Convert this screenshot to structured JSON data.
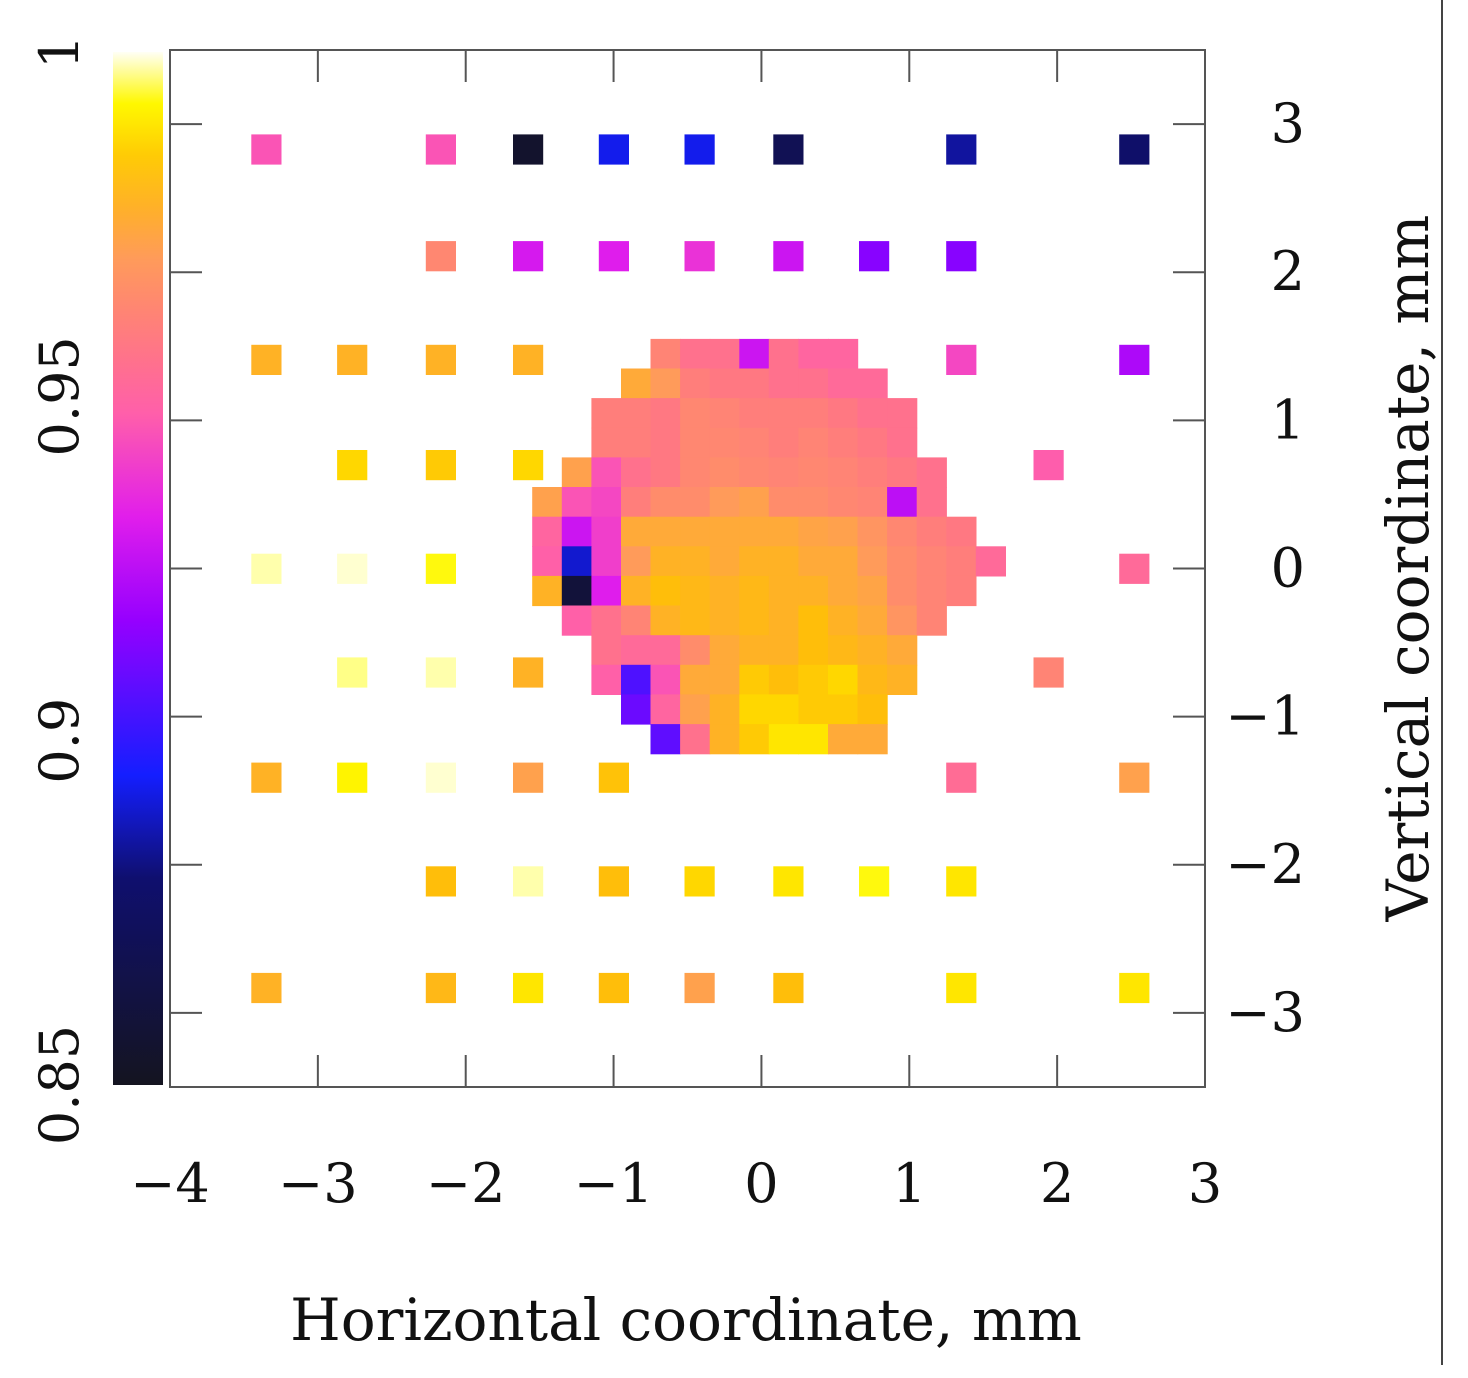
{
  "chart_data": {
    "type": "heatmap",
    "title": "",
    "xlabel": "Horizontal coordinate, mm",
    "ylabel": "Vertical coordinate, mm",
    "xlim": [
      -4,
      3
    ],
    "ylim": [
      -3.5,
      3.5
    ],
    "x_ticks": [
      -4,
      -3,
      -2,
      -1,
      0,
      1,
      2,
      3
    ],
    "x_tick_labels": [
      "−4",
      "−3",
      "−2",
      "−1",
      "0",
      "1",
      "2",
      "3"
    ],
    "y_ticks": [
      -3,
      -2,
      -1,
      0,
      1,
      2,
      3
    ],
    "y_tick_labels": [
      "−3",
      "−2",
      "−1",
      "0",
      "1",
      "2",
      "3"
    ],
    "colorbar": {
      "range": [
        0.85,
        1
      ],
      "ticks": [
        0.85,
        0.9,
        0.95,
        1
      ],
      "tick_labels": [
        "0.85",
        "0.9",
        "0.95",
        "1"
      ],
      "colormap": "gnuplot-pm3d (black-blue-magenta-yellow-white)"
    },
    "grid": false,
    "cell_size_mm": 0.2,
    "sparse_cells": [
      {
        "x": -3.35,
        "y": 2.83,
        "v": 0.945
      },
      {
        "x": -2.17,
        "y": 2.83,
        "v": 0.945
      },
      {
        "x": -1.58,
        "y": 2.83,
        "v": 0.855
      },
      {
        "x": -1.0,
        "y": 2.83,
        "v": 0.893
      },
      {
        "x": -0.42,
        "y": 2.83,
        "v": 0.893
      },
      {
        "x": 0.18,
        "y": 2.83,
        "v": 0.87
      },
      {
        "x": 1.35,
        "y": 2.83,
        "v": 0.885
      },
      {
        "x": 2.52,
        "y": 2.83,
        "v": 0.878
      },
      {
        "x": -2.17,
        "y": 2.11,
        "v": 0.963
      },
      {
        "x": -1.58,
        "y": 2.11,
        "v": 0.93
      },
      {
        "x": -1.0,
        "y": 2.11,
        "v": 0.932
      },
      {
        "x": -0.42,
        "y": 2.11,
        "v": 0.937
      },
      {
        "x": 0.18,
        "y": 2.11,
        "v": 0.928
      },
      {
        "x": 0.76,
        "y": 2.11,
        "v": 0.915
      },
      {
        "x": 1.35,
        "y": 2.11,
        "v": 0.915
      },
      {
        "x": -3.35,
        "y": 1.41,
        "v": 0.978
      },
      {
        "x": -2.77,
        "y": 1.41,
        "v": 0.978
      },
      {
        "x": -2.17,
        "y": 1.41,
        "v": 0.978
      },
      {
        "x": -1.58,
        "y": 1.41,
        "v": 0.978
      },
      {
        "x": 1.35,
        "y": 1.41,
        "v": 0.942
      },
      {
        "x": 2.52,
        "y": 1.41,
        "v": 0.922
      },
      {
        "x": -2.77,
        "y": 0.7,
        "v": 0.988
      },
      {
        "x": -2.17,
        "y": 0.7,
        "v": 0.985
      },
      {
        "x": -1.58,
        "y": 0.7,
        "v": 0.988
      },
      {
        "x": 1.94,
        "y": 0.7,
        "v": 0.947
      },
      {
        "x": -3.35,
        "y": 0.0,
        "v": 0.998
      },
      {
        "x": -2.77,
        "y": 0.0,
        "v": 0.999
      },
      {
        "x": -2.17,
        "y": 0.0,
        "v": 0.993
      },
      {
        "x": 2.52,
        "y": 0.0,
        "v": 0.952
      },
      {
        "x": -2.77,
        "y": -0.7,
        "v": 0.997
      },
      {
        "x": -2.17,
        "y": -0.7,
        "v": 0.998
      },
      {
        "x": -1.58,
        "y": -0.7,
        "v": 0.978
      },
      {
        "x": 1.94,
        "y": -0.7,
        "v": 0.962
      },
      {
        "x": -3.35,
        "y": -1.41,
        "v": 0.978
      },
      {
        "x": -2.77,
        "y": -1.41,
        "v": 0.992
      },
      {
        "x": -2.17,
        "y": -1.41,
        "v": 0.999
      },
      {
        "x": -1.58,
        "y": -1.41,
        "v": 0.972
      },
      {
        "x": -1.0,
        "y": -1.41,
        "v": 0.983
      },
      {
        "x": 1.35,
        "y": -1.41,
        "v": 0.953
      },
      {
        "x": 2.52,
        "y": -1.41,
        "v": 0.972
      },
      {
        "x": -2.17,
        "y": -2.11,
        "v": 0.982
      },
      {
        "x": -1.58,
        "y": -2.11,
        "v": 0.998
      },
      {
        "x": -1.0,
        "y": -2.11,
        "v": 0.982
      },
      {
        "x": -0.42,
        "y": -2.11,
        "v": 0.988
      },
      {
        "x": 0.18,
        "y": -2.11,
        "v": 0.99
      },
      {
        "x": 0.76,
        "y": -2.11,
        "v": 0.993
      },
      {
        "x": 1.35,
        "y": -2.11,
        "v": 0.99
      },
      {
        "x": -3.35,
        "y": -2.83,
        "v": 0.978
      },
      {
        "x": -2.17,
        "y": -2.83,
        "v": 0.98
      },
      {
        "x": -1.58,
        "y": -2.83,
        "v": 0.99
      },
      {
        "x": -1.0,
        "y": -2.83,
        "v": 0.982
      },
      {
        "x": -0.42,
        "y": -2.83,
        "v": 0.972
      },
      {
        "x": 0.18,
        "y": -2.83,
        "v": 0.982
      },
      {
        "x": 1.35,
        "y": -2.83,
        "v": 0.99
      },
      {
        "x": 2.52,
        "y": -2.83,
        "v": 0.99
      }
    ],
    "dense_region": {
      "x_start": -1.45,
      "y_start": 1.45,
      "dx": 0.2,
      "dy": -0.2,
      "note": "null = no measurement",
      "rows": [
        [
          null,
          null,
          null,
          null,
          0.962,
          0.955,
          0.955,
          0.928,
          0.955,
          0.95,
          0.95,
          null,
          null,
          null,
          null,
          null,
          null
        ],
        [
          null,
          null,
          null,
          0.975,
          0.97,
          0.96,
          0.958,
          0.958,
          0.955,
          0.955,
          0.952,
          0.952,
          null,
          null,
          null,
          null,
          null
        ],
        [
          null,
          null,
          0.96,
          0.96,
          0.958,
          0.963,
          0.962,
          0.96,
          0.96,
          0.96,
          0.958,
          0.955,
          0.955,
          null,
          null,
          null,
          null
        ],
        [
          null,
          null,
          0.96,
          0.96,
          0.958,
          0.963,
          0.963,
          0.962,
          0.96,
          0.962,
          0.96,
          0.958,
          0.955,
          null,
          null,
          null,
          null
        ],
        [
          null,
          0.972,
          0.945,
          0.955,
          0.958,
          0.963,
          0.965,
          0.963,
          0.962,
          0.963,
          0.962,
          0.96,
          0.958,
          0.955,
          null,
          null,
          null
        ],
        [
          0.972,
          0.945,
          0.942,
          0.96,
          0.965,
          0.965,
          0.97,
          0.972,
          0.965,
          0.965,
          0.963,
          0.962,
          0.925,
          0.955,
          null,
          null,
          null
        ],
        [
          0.95,
          0.928,
          0.94,
          0.975,
          0.975,
          0.975,
          0.975,
          0.975,
          0.975,
          0.973,
          0.972,
          0.968,
          0.963,
          0.96,
          0.958,
          null,
          null
        ],
        [
          0.948,
          0.89,
          0.94,
          0.97,
          0.978,
          0.978,
          0.975,
          0.978,
          0.978,
          0.975,
          0.975,
          0.97,
          0.965,
          0.962,
          0.96,
          0.952,
          null
        ],
        [
          0.978,
          0.86,
          0.932,
          0.978,
          0.982,
          0.98,
          0.978,
          0.98,
          0.978,
          0.978,
          0.975,
          0.973,
          0.965,
          0.962,
          0.96,
          null,
          null
        ],
        [
          null,
          0.948,
          0.955,
          0.962,
          0.978,
          0.98,
          0.978,
          0.98,
          0.978,
          0.982,
          0.978,
          0.975,
          0.968,
          0.962,
          null,
          null,
          null
        ],
        [
          null,
          null,
          0.955,
          0.952,
          0.952,
          0.965,
          0.975,
          0.978,
          0.978,
          0.982,
          0.98,
          0.978,
          0.975,
          null,
          null,
          null,
          null
        ],
        [
          null,
          null,
          0.948,
          0.905,
          0.945,
          0.975,
          0.975,
          0.985,
          0.982,
          0.985,
          0.988,
          0.98,
          0.978,
          null,
          null,
          null,
          null
        ],
        [
          null,
          null,
          null,
          0.91,
          0.95,
          0.972,
          0.978,
          0.988,
          0.988,
          0.985,
          0.985,
          0.982,
          null,
          null,
          null,
          null,
          null
        ],
        [
          null,
          null,
          null,
          null,
          0.908,
          0.955,
          0.978,
          0.985,
          0.99,
          0.99,
          0.975,
          0.975,
          null,
          null,
          null,
          null,
          null
        ]
      ]
    }
  }
}
